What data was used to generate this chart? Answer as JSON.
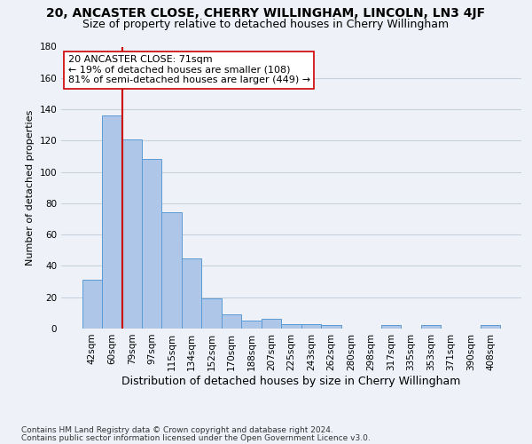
{
  "title1": "20, ANCASTER CLOSE, CHERRY WILLINGHAM, LINCOLN, LN3 4JF",
  "title2": "Size of property relative to detached houses in Cherry Willingham",
  "xlabel": "Distribution of detached houses by size in Cherry Willingham",
  "ylabel": "Number of detached properties",
  "footnote1": "Contains HM Land Registry data © Crown copyright and database right 2024.",
  "footnote2": "Contains public sector information licensed under the Open Government Licence v3.0.",
  "categories": [
    "42sqm",
    "60sqm",
    "79sqm",
    "97sqm",
    "115sqm",
    "134sqm",
    "152sqm",
    "170sqm",
    "188sqm",
    "207sqm",
    "225sqm",
    "243sqm",
    "262sqm",
    "280sqm",
    "298sqm",
    "317sqm",
    "335sqm",
    "353sqm",
    "371sqm",
    "390sqm",
    "408sqm"
  ],
  "values": [
    31,
    136,
    121,
    108,
    74,
    45,
    19,
    9,
    5,
    6,
    3,
    3,
    2,
    0,
    0,
    2,
    0,
    2,
    0,
    0,
    2
  ],
  "bar_color": "#aec6e8",
  "bar_edge_color": "#5b9bd5",
  "vline_x": 1.5,
  "vline_color": "#cc0000",
  "annotation_text": "20 ANCASTER CLOSE: 71sqm\n← 19% of detached houses are smaller (108)\n81% of semi-detached houses are larger (449) →",
  "annotation_box_color": "#ffffff",
  "annotation_box_edge": "#cc0000",
  "ylim": [
    0,
    180
  ],
  "yticks": [
    0,
    20,
    40,
    60,
    80,
    100,
    120,
    140,
    160,
    180
  ],
  "background_color": "#eef2f8",
  "grid_color": "#c8d0dc",
  "title1_fontsize": 10,
  "title2_fontsize": 9,
  "xlabel_fontsize": 9,
  "ylabel_fontsize": 8,
  "tick_fontsize": 7.5,
  "annot_fontsize": 8,
  "footnote_fontsize": 6.5
}
